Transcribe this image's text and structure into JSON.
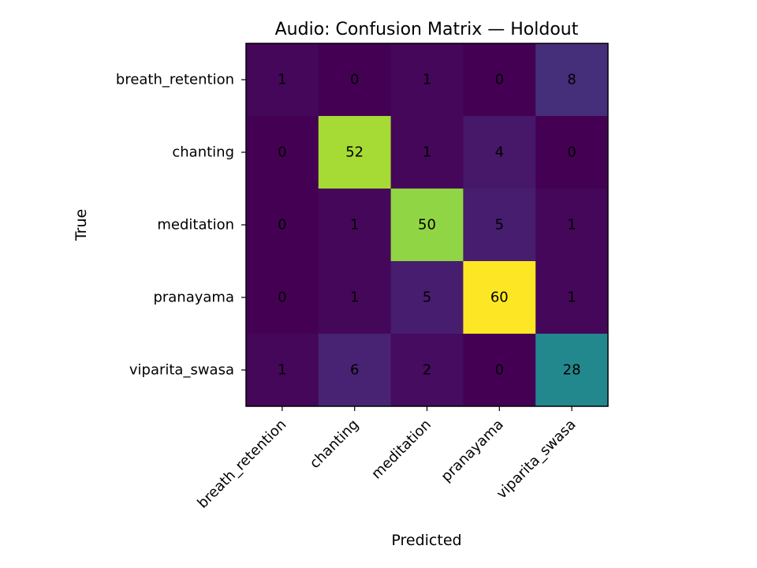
{
  "chart_data": {
    "type": "heatmap",
    "title": "Audio: Confusion Matrix — Holdout",
    "xlabel": "Predicted",
    "ylabel": "True",
    "x_categories": [
      "breath_retention",
      "chanting",
      "meditation",
      "pranayama",
      "viparita_swasa"
    ],
    "y_categories": [
      "breath_retention",
      "chanting",
      "meditation",
      "pranayama",
      "viparita_swasa"
    ],
    "values": [
      [
        1,
        0,
        1,
        0,
        8
      ],
      [
        0,
        52,
        1,
        4,
        0
      ],
      [
        0,
        1,
        50,
        5,
        1
      ],
      [
        0,
        1,
        5,
        60,
        1
      ],
      [
        1,
        6,
        2,
        0,
        28
      ]
    ],
    "value_range": [
      0,
      60
    ],
    "colormap": "viridis",
    "grid": false,
    "legend": "none"
  }
}
